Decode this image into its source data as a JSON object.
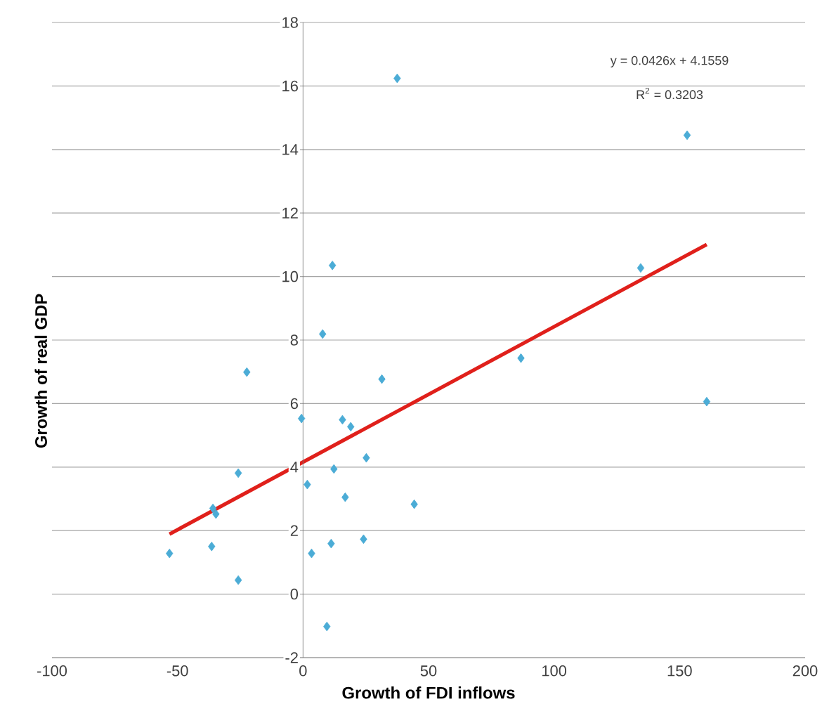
{
  "chart_data": {
    "type": "scatter",
    "xlabel": "Growth of FDI inflows",
    "ylabel": "Growth of real GDP",
    "xlim": [
      -100,
      200
    ],
    "ylim": [
      -2,
      18
    ],
    "xticks": [
      -100,
      -50,
      0,
      50,
      100,
      150,
      200
    ],
    "yticks": [
      -2,
      0,
      2,
      4,
      6,
      8,
      10,
      12,
      14,
      16,
      18
    ],
    "grid": "y",
    "marker": "diamond",
    "annotations": [
      "y = 0.0426x + 4.1559",
      "R$^{2}$ = 0.3203"
    ],
    "series": [
      {
        "color": "#4bacd6",
        "x": [
          37.5,
          11.7,
          7.8,
          153,
          134.5,
          86.8,
          160.8,
          -22.4,
          31.4,
          -0.6,
          15.7,
          19,
          25.2,
          -25.8,
          12.3,
          1.7,
          -35.9,
          -34.7,
          16.8,
          44.3,
          -53.2,
          -36.4,
          11.2,
          24.1,
          3.4,
          -25.8,
          9.5
        ],
        "values": [
          16.24,
          10.35,
          8.19,
          14.45,
          10.27,
          7.43,
          6.06,
          6.99,
          6.77,
          5.53,
          5.49,
          5.27,
          4.29,
          3.81,
          3.94,
          3.45,
          2.7,
          2.52,
          3.05,
          2.83,
          1.28,
          1.5,
          1.59,
          1.73,
          1.28,
          0.44,
          -1.02
        ]
      },
      {
        "type": "line",
        "marker": "none",
        "color": "#e0201b",
        "x": [
          -53.2,
          160.8
        ],
        "values": [
          1.89,
          11.01
        ]
      }
    ]
  }
}
